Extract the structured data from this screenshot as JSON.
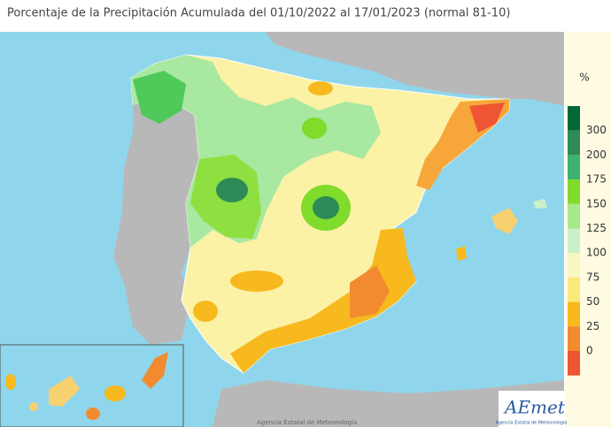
{
  "header": {
    "title": "Porcentaje de la Precipitación Acumulada del 01/10/2022 al 17/01/2023 (normal 81-10)"
  },
  "legend": {
    "unit": "%",
    "colors": [
      "#006837",
      "#2e8b57",
      "#3cb371",
      "#7fdc2a",
      "#a6e88a",
      "#c9f0c8",
      "#f7f7c0",
      "#fbe97a",
      "#f7b91e",
      "#f28a30",
      "#ee5533"
    ],
    "labels": [
      300,
      200,
      175,
      150,
      125,
      100,
      75,
      50,
      25,
      0
    ]
  },
  "footer": {
    "credit": "Agencia Estatal de Meteorología",
    "logo": "AEmet",
    "logo_caption": "Agencia Estatal de Meteorología"
  }
}
